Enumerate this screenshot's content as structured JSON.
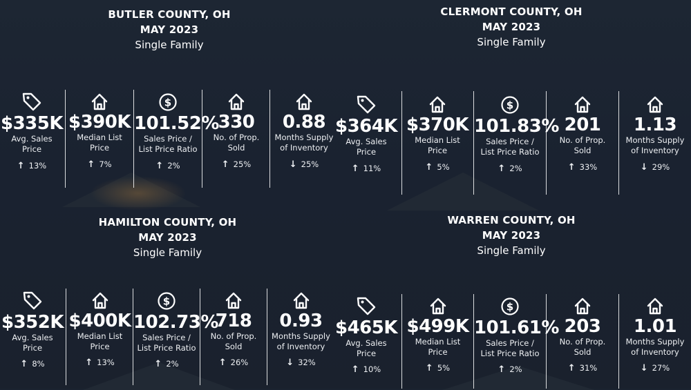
{
  "panels": [
    {
      "county": "BUTLER COUNTY, OH",
      "month": "MAY 2023",
      "type": "Single Family",
      "stats": [
        {
          "icon": "price-tag-icon",
          "value": "$335K",
          "label1": "Avg. Sales",
          "label2": "Price",
          "arrow": "↑",
          "change": "13%"
        },
        {
          "icon": "house-icon",
          "value": "$390K",
          "label1": "Median List",
          "label2": "Price",
          "arrow": "↑",
          "change": "7%"
        },
        {
          "icon": "dollar-circle-icon",
          "value": "101.52%",
          "label1": "Sales Price /",
          "label2": "List Price Ratio",
          "arrow": "↑",
          "change": "2%"
        },
        {
          "icon": "house-icon",
          "value": "330",
          "label1": "No. of Prop.",
          "label2": "Sold",
          "arrow": "↑",
          "change": "25%"
        },
        {
          "icon": "house-icon",
          "value": "0.88",
          "label1": "Months Supply",
          "label2": "of Inventory",
          "arrow": "↓",
          "change": "25%"
        }
      ]
    },
    {
      "county": "CLERMONT COUNTY, OH",
      "month": "MAY 2023",
      "type": "Single Family",
      "stats": [
        {
          "icon": "price-tag-icon",
          "value": "$364K",
          "label1": "Avg. Sales",
          "label2": "Price",
          "arrow": "↑",
          "change": "11%"
        },
        {
          "icon": "house-icon",
          "value": "$370K",
          "label1": "Median List",
          "label2": "Price",
          "arrow": "↑",
          "change": "5%"
        },
        {
          "icon": "dollar-circle-icon",
          "value": "101.83%",
          "label1": "Sales Price /",
          "label2": "List Price Ratio",
          "arrow": "↑",
          "change": "2%"
        },
        {
          "icon": "house-icon",
          "value": "201",
          "label1": "No. of Prop.",
          "label2": "Sold",
          "arrow": "↑",
          "change": "33%"
        },
        {
          "icon": "house-icon",
          "value": "1.13",
          "label1": "Months Supply",
          "label2": "of Inventory",
          "arrow": "↓",
          "change": "29%"
        }
      ]
    },
    {
      "county": "HAMILTON COUNTY, OH",
      "month": "MAY 2023",
      "type": "Single Family",
      "stats": [
        {
          "icon": "price-tag-icon",
          "value": "$352K",
          "label1": "Avg. Sales",
          "label2": "Price",
          "arrow": "↑",
          "change": "8%"
        },
        {
          "icon": "house-icon",
          "value": "$400K",
          "label1": "Median List",
          "label2": "Price",
          "arrow": "↑",
          "change": "13%"
        },
        {
          "icon": "dollar-circle-icon",
          "value": "102.73%",
          "label1": "Sales Price /",
          "label2": "List Price Ratio",
          "arrow": "↑",
          "change": "2%"
        },
        {
          "icon": "house-icon",
          "value": "718",
          "label1": "No. of Prop.",
          "label2": "Sold",
          "arrow": "↑",
          "change": "26%"
        },
        {
          "icon": "house-icon",
          "value": "0.93",
          "label1": "Months Supply",
          "label2": "of Inventory",
          "arrow": "↓",
          "change": "32%"
        }
      ]
    },
    {
      "county": "WARREN COUNTY, OH",
      "month": "MAY 2023",
      "type": "Single Family",
      "stats": [
        {
          "icon": "price-tag-icon",
          "value": "$465K",
          "label1": "Avg. Sales",
          "label2": "Price",
          "arrow": "↑",
          "change": "10%"
        },
        {
          "icon": "house-icon",
          "value": "$499K",
          "label1": "Median List",
          "label2": "Price",
          "arrow": "↑",
          "change": "5%"
        },
        {
          "icon": "dollar-circle-icon",
          "value": "101.61%",
          "label1": "Sales Price /",
          "label2": "List Price Ratio",
          "arrow": "↑",
          "change": "2%"
        },
        {
          "icon": "house-icon",
          "value": "203",
          "label1": "No. of Prop.",
          "label2": "Sold",
          "arrow": "↑",
          "change": "31%"
        },
        {
          "icon": "house-icon",
          "value": "1.01",
          "label1": "Months Supply",
          "label2": "of Inventory",
          "arrow": "↓",
          "change": "27%"
        }
      ]
    }
  ]
}
